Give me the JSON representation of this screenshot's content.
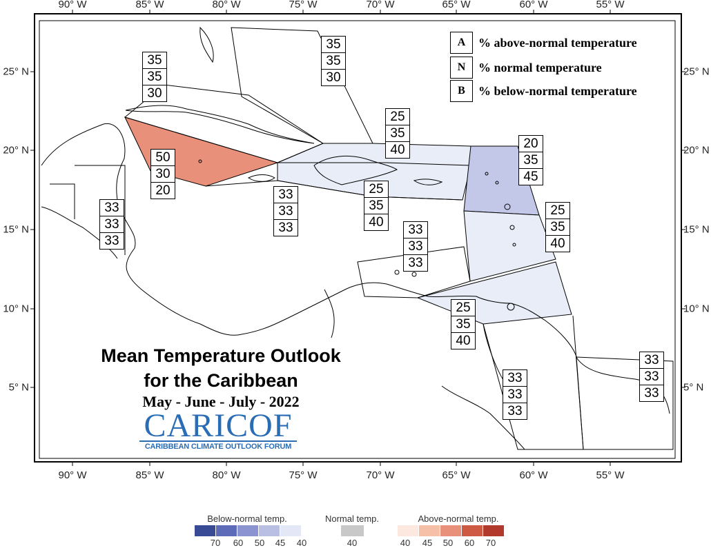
{
  "map": {
    "title_line1": "Mean Temperature Outlook",
    "title_line2": "for the Caribbean",
    "period": "May - June - July - 2022",
    "logo": {
      "wordmark": "CARICOF",
      "subtitle": "CARIBBEAN CLIMATE OUTLOOK FORUM",
      "color": "#2b6db5"
    },
    "longitude_labels": [
      "90° W",
      "85° W",
      "80° W",
      "75° W",
      "70° W",
      "65° W",
      "60° W",
      "55° W"
    ],
    "latitude_labels": [
      "25° N",
      "20° N",
      "15° N",
      "10° N",
      "5° N"
    ],
    "key": [
      {
        "letter": "A",
        "text": "% above-normal temperature"
      },
      {
        "letter": "N",
        "text": "% normal temperature"
      },
      {
        "letter": "B",
        "text": "% below-normal temperature"
      }
    ],
    "zones": [
      {
        "id": "bahamas",
        "values": [
          "35",
          "35",
          "30"
        ],
        "fill": "none"
      },
      {
        "id": "cuba",
        "values": [
          "35",
          "35",
          "30"
        ],
        "fill": "none"
      },
      {
        "id": "cayman",
        "values": [
          "50",
          "30",
          "20"
        ],
        "fill": "#e8907a"
      },
      {
        "id": "belize",
        "values": [
          "33",
          "33",
          "33"
        ],
        "fill": "none"
      },
      {
        "id": "jamaica",
        "values": [
          "33",
          "33",
          "33"
        ],
        "fill": "none"
      },
      {
        "id": "turks-caicos",
        "values": [
          "25",
          "35",
          "40"
        ],
        "fill": "#e9edf8"
      },
      {
        "id": "greater-antilles",
        "values": [
          "25",
          "35",
          "40"
        ],
        "fill": "#e9edf8"
      },
      {
        "id": "leeward-islands",
        "values": [
          "20",
          "35",
          "45"
        ],
        "fill": "#c3c8e8"
      },
      {
        "id": "windward-islands",
        "values": [
          "25",
          "35",
          "40"
        ],
        "fill": "#e9edf8"
      },
      {
        "id": "abc-islands",
        "values": [
          "33",
          "33",
          "33"
        ],
        "fill": "none"
      },
      {
        "id": "trinidad",
        "values": [
          "25",
          "35",
          "40"
        ],
        "fill": "#e9edf8"
      },
      {
        "id": "guyana",
        "values": [
          "33",
          "33",
          "33"
        ],
        "fill": "none"
      },
      {
        "id": "suriname",
        "values": [
          "33",
          "33",
          "33"
        ],
        "fill": "none"
      }
    ]
  },
  "colorbar": {
    "below_title": "Below-normal temp.",
    "normal_title": "Normal temp.",
    "above_title": "Above-normal temp.",
    "below_colors": [
      "#3a4b95",
      "#5d6bb8",
      "#8b94d1",
      "#b9bfe3",
      "#e3e7f6"
    ],
    "below_ticks": [
      "70",
      "60",
      "50",
      "45",
      "40"
    ],
    "normal_color": "#c8c8c8",
    "normal_tick": "40",
    "above_colors": [
      "#fde8e0",
      "#f6bfa8",
      "#e8907a",
      "#cf5a44",
      "#b23a2c"
    ],
    "above_ticks": [
      "40",
      "45",
      "50",
      "60",
      "70"
    ]
  }
}
